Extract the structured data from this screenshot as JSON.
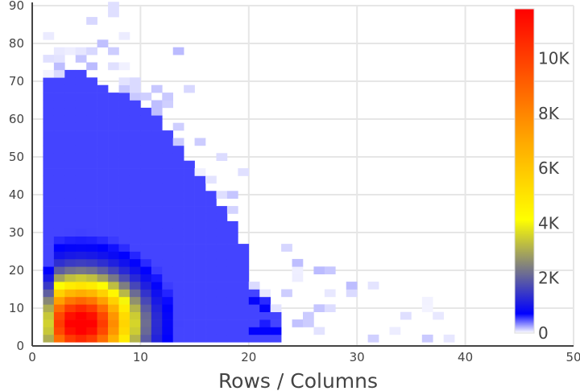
{
  "chart_data": {
    "type": "heatmap",
    "title": "",
    "xlabel": "Rows / Columns",
    "ylabel": "",
    "xlim": [
      0,
      50
    ],
    "ylim": [
      0,
      90
    ],
    "x_ticks": [
      "0",
      "10",
      "20",
      "30",
      "40",
      "50"
    ],
    "y_ticks": [
      "0",
      "10",
      "20",
      "30",
      "40",
      "50",
      "60",
      "70",
      "80",
      "90"
    ],
    "grid": true,
    "colorbar": {
      "range": [
        0,
        11800
      ],
      "tick_values": [
        0,
        2000,
        4000,
        6000,
        8000,
        10000
      ],
      "tick_labels": [
        "0",
        "2K",
        "4K",
        "6K",
        "8K",
        "10K"
      ],
      "colors": [
        "#ffffff",
        "#0000ff",
        "#ffff00",
        "#ffa500",
        "#ff0000"
      ],
      "placement": "right"
    },
    "bin_size": {
      "x": 1,
      "y": 2
    },
    "density_description": "2D histogram of counts; dense region x 1–19, y 0–70, peak about 11K near x≈4, y≈6; sparse tail to x≈46",
    "peak": {
      "x": 4.5,
      "y": 6,
      "count": 11500
    },
    "core_extent": [
      [
        1,
        70
      ],
      [
        2,
        71
      ],
      [
        3,
        72
      ],
      [
        4,
        72
      ],
      [
        5,
        71
      ],
      [
        6,
        69
      ],
      [
        7,
        67
      ],
      [
        8,
        66
      ],
      [
        9,
        64
      ],
      [
        10,
        62
      ],
      [
        11,
        60
      ],
      [
        12,
        56
      ],
      [
        13,
        53
      ],
      [
        14,
        49
      ],
      [
        15,
        45
      ],
      [
        16,
        41
      ],
      [
        17,
        36
      ],
      [
        18,
        32
      ],
      [
        19,
        27
      ],
      [
        20,
        15
      ],
      [
        21,
        12
      ],
      [
        22,
        9
      ]
    ]
  }
}
